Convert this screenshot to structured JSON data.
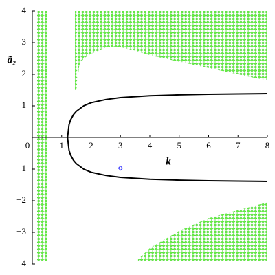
{
  "chart_data": {
    "type": "region-plot",
    "xlabel": "k",
    "ylabel": "ã₂",
    "xlim": [
      0,
      8
    ],
    "ylim": [
      -4,
      4
    ],
    "xticks": [
      0,
      1,
      2,
      3,
      4,
      5,
      6,
      7,
      8
    ],
    "yticks": [
      {
        "value": -4,
        "label": "−4"
      },
      {
        "value": -3,
        "label": "−3"
      },
      {
        "value": -2,
        "label": "−2"
      },
      {
        "value": -1,
        "label": "−1"
      },
      1,
      2,
      3,
      4
    ],
    "regions": [
      {
        "color": "#66ee44",
        "x": [
          0.15,
          0.5
        ],
        "y_low": [
          -3.9,
          -3.9
        ],
        "y_high": [
          4,
          4
        ]
      },
      {
        "color": "#66ee44",
        "x": [
          1.45,
          1.5,
          1.6,
          1.75,
          2,
          2.5,
          3,
          3.5,
          4,
          5,
          6,
          7,
          8
        ],
        "y_low": [
          1.5,
          1.5,
          2.3,
          2.5,
          2.65,
          2.85,
          2.85,
          2.75,
          2.6,
          2.4,
          2.2,
          2.0,
          1.8
        ],
        "y_high": [
          4,
          4,
          4,
          4,
          4,
          4,
          4,
          4,
          4,
          4,
          4,
          4,
          4
        ]
      },
      {
        "color": "#66ee44",
        "x": [
          3.6,
          4,
          5,
          6,
          7,
          8
        ],
        "y_low": [
          -3.9,
          -3.9,
          -3.9,
          -3.9,
          -3.9,
          -3.9
        ],
        "y_high": [
          -3.85,
          -3.5,
          -2.95,
          -2.55,
          -2.3,
          -2.05
        ]
      }
    ],
    "curves": [
      {
        "color": "#000000",
        "x": [
          1.2,
          1.25,
          1.3,
          1.4,
          1.5,
          1.75,
          2,
          2.5,
          3,
          4,
          5,
          6,
          7,
          8
        ],
        "y": [
          0,
          0.4,
          0.55,
          0.72,
          0.83,
          1.0,
          1.1,
          1.2,
          1.26,
          1.32,
          1.35,
          1.37,
          1.38,
          1.39
        ]
      },
      {
        "color": "#000000",
        "x": [
          1.2,
          1.25,
          1.3,
          1.4,
          1.5,
          1.75,
          2,
          2.5,
          3,
          4,
          5,
          6,
          7,
          8
        ],
        "y": [
          0,
          -0.4,
          -0.55,
          -0.72,
          -0.83,
          -1.0,
          -1.1,
          -1.2,
          -1.26,
          -1.32,
          -1.35,
          -1.37,
          -1.38,
          -1.39
        ]
      }
    ],
    "points": {
      "color": "#3333ff",
      "x": [
        3
      ],
      "y": [
        -0.97
      ]
    }
  }
}
